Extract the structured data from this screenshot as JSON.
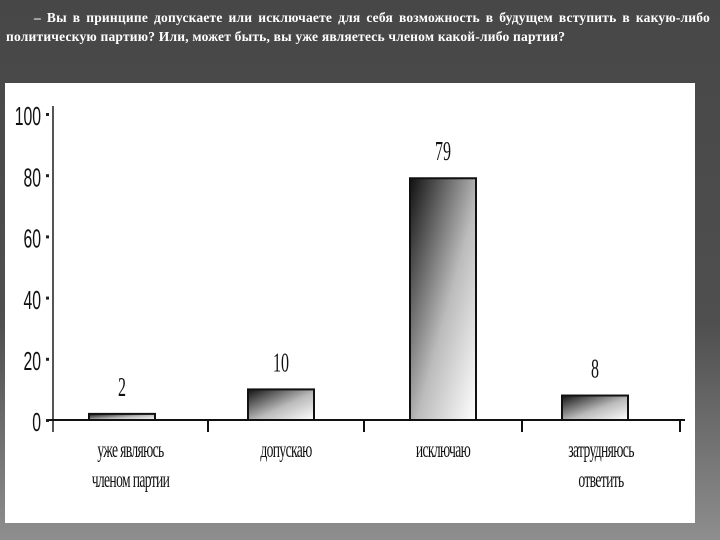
{
  "question": "– Вы в принципе допускаете или исключаете для себя возможность в будущем вступить в какую-либо политическую партию? Или, может быть, вы уже являетесь членом какой-либо партии?",
  "chart_data": {
    "type": "bar",
    "categories": [
      [
        "уже являюсь",
        "членом партии"
      ],
      [
        "допускаю"
      ],
      [
        "исключаю"
      ],
      [
        "затрудняюсь",
        "ответить"
      ]
    ],
    "values": [
      2,
      10,
      79,
      8
    ],
    "data_labels": [
      "2",
      "10",
      "79",
      "8"
    ],
    "ylim": [
      0,
      100
    ],
    "yticks": [
      "0",
      "20",
      "40",
      "60",
      "80",
      "100"
    ],
    "grid": false,
    "title": "",
    "xlabel": "",
    "ylabel": "",
    "bar_fill": "gradient dark-to-light",
    "colors": {
      "bar_dark": "#1a1a1a",
      "bar_light": "#ffffff",
      "background": "#4a4a4a"
    }
  }
}
